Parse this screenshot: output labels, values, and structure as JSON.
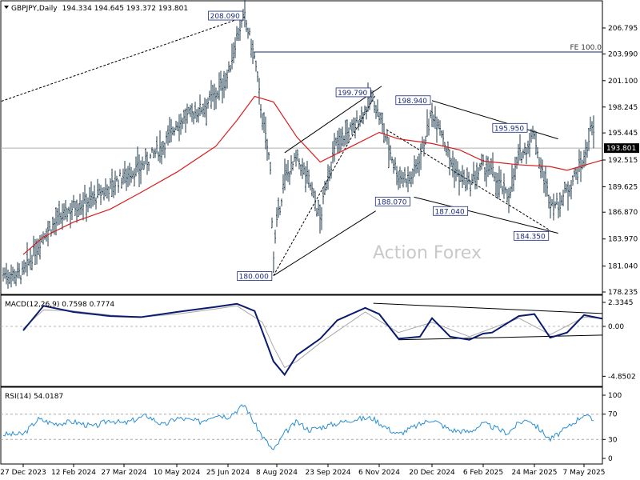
{
  "header": {
    "symbol": "GBPJPY",
    "timeframe": "Daily",
    "ohlc": "194.334 194.645 193.372 193.801"
  },
  "watermark": "Action Forex",
  "chart_data": [
    {
      "type": "line",
      "subtype": "ohlc-bars",
      "title": "GBPJPY,Daily",
      "y_axis_ticks": [
        "206.795",
        "203.990",
        "201.100",
        "198.245",
        "195.445",
        "192.515",
        "189.625",
        "186.870",
        "183.970",
        "181.040",
        "178.235"
      ],
      "ylim": [
        178.235,
        208.09
      ],
      "current_price": "193.801",
      "x_tick_labels": [
        "27 Dec 2023",
        "12 Feb 2024",
        "27 Mar 2024",
        "10 May 2024",
        "25 Jun 2024",
        "8 Aug 2024",
        "23 Sep 2024",
        "6 Nov 2024",
        "20 Dec 2024",
        "6 Feb 2025",
        "24 Mar 2025",
        "7 May 2025"
      ],
      "series": [
        {
          "name": "close",
          "x": [
            "2023-12-27",
            "2024-01-15",
            "2024-02-12",
            "2024-03-01",
            "2024-03-15",
            "2024-03-27",
            "2024-04-10",
            "2024-04-29",
            "2024-05-10",
            "2024-05-31",
            "2024-06-14",
            "2024-06-25",
            "2024-07-03",
            "2024-07-10",
            "2024-07-19",
            "2024-07-26",
            "2024-08-02",
            "2024-08-05",
            "2024-08-08",
            "2024-08-15",
            "2024-08-26",
            "2024-09-06",
            "2024-09-16",
            "2024-09-23",
            "2024-10-01",
            "2024-10-15",
            "2024-10-25",
            "2024-10-31",
            "2024-11-06",
            "2024-11-15",
            "2024-11-22",
            "2024-12-03",
            "2024-12-10",
            "2024-12-20",
            "2024-12-26",
            "2025-01-06",
            "2025-01-15",
            "2025-01-24",
            "2025-02-06",
            "2025-02-14",
            "2025-02-28",
            "2025-03-10",
            "2025-03-19",
            "2025-03-24",
            "2025-03-28",
            "2025-04-07",
            "2025-04-14",
            "2025-04-22",
            "2025-04-30",
            "2025-05-07",
            "2025-05-13",
            "2025-05-20",
            "2025-05-23"
          ],
          "values": [
            180.2,
            184.5,
            187.5,
            188.4,
            189.6,
            190.8,
            191.7,
            194.2,
            196.5,
            198.0,
            199.6,
            201.6,
            206.0,
            208.0,
            203.5,
            197.0,
            192.0,
            182.0,
            185.5,
            190.5,
            192.6,
            190.3,
            186.0,
            191.0,
            194.5,
            196.0,
            198.0,
            199.3,
            197.2,
            193.5,
            190.8,
            190.5,
            193.0,
            197.5,
            196.8,
            192.5,
            190.6,
            189.7,
            191.8,
            191.2,
            188.5,
            192.8,
            194.2,
            195.6,
            192.5,
            188.0,
            187.6,
            189.3,
            191.0,
            192.5,
            195.8,
            194.8,
            193.8
          ]
        },
        {
          "name": "moving-average",
          "x": [
            "2023-12-27",
            "2024-01-15",
            "2024-02-12",
            "2024-03-15",
            "2024-04-10",
            "2024-05-10",
            "2024-06-14",
            "2024-07-03",
            "2024-07-19",
            "2024-08-05",
            "2024-08-26",
            "2024-09-16",
            "2024-10-15",
            "2024-11-06",
            "2024-11-22",
            "2024-12-20",
            "2025-01-15",
            "2025-02-06",
            "2025-03-10",
            "2025-04-07",
            "2025-04-22",
            "2025-05-23"
          ],
          "values": [
            182.3,
            184.2,
            185.8,
            187.2,
            189.0,
            191.2,
            194.0,
            196.8,
            199.4,
            198.8,
            195.0,
            192.3,
            194.1,
            195.5,
            194.8,
            194.3,
            193.6,
            192.4,
            192.0,
            191.8,
            191.4,
            192.5
          ]
        }
      ],
      "level_labels": [
        {
          "date": "2024-07-10",
          "value": 208.09,
          "label": "208.090"
        },
        {
          "date": "2024-08-05",
          "value": 180.0,
          "label": "180.000"
        },
        {
          "date": "2024-10-31",
          "value": 199.79,
          "label": "199.790"
        },
        {
          "date": "2024-12-03",
          "value": 188.07,
          "label": "188.070"
        },
        {
          "date": "2024-12-20",
          "value": 198.94,
          "label": "198.940"
        },
        {
          "date": "2025-01-24",
          "value": 187.04,
          "label": "187.040"
        },
        {
          "date": "2025-03-19",
          "value": 195.95,
          "label": "195.950"
        },
        {
          "date": "2025-04-07",
          "value": 184.35,
          "label": "184.350"
        }
      ],
      "fe_label": "FE 100.0",
      "fe_level": 204.2
    },
    {
      "type": "line",
      "title": "MACD(12,26,9) 0.7598 0.7774",
      "y_axis_ticks": [
        "2.3345",
        "0.00",
        "-4.8502"
      ],
      "ylim": [
        -4.8502,
        2.3345
      ],
      "series": [
        {
          "name": "MACD",
          "x": [
            "2023-12-27",
            "2024-01-15",
            "2024-02-12",
            "2024-03-15",
            "2024-04-10",
            "2024-05-10",
            "2024-06-14",
            "2024-07-03",
            "2024-07-19",
            "2024-07-26",
            "2024-08-05",
            "2024-08-15",
            "2024-08-26",
            "2024-09-16",
            "2024-10-01",
            "2024-10-25",
            "2024-11-06",
            "2024-11-22",
            "2024-12-10",
            "2024-12-20",
            "2025-01-06",
            "2025-01-24",
            "2025-02-06",
            "2025-02-14",
            "2025-03-10",
            "2025-03-24",
            "2025-04-07",
            "2025-04-22",
            "2025-05-07",
            "2025-05-23"
          ],
          "values": [
            -0.4,
            2.0,
            1.4,
            1.0,
            0.9,
            1.4,
            1.9,
            2.2,
            1.5,
            -0.5,
            -3.4,
            -4.7,
            -2.8,
            -1.2,
            0.6,
            1.8,
            1.2,
            -1.2,
            -1.0,
            0.8,
            -1.0,
            -1.3,
            -0.7,
            -0.6,
            1.0,
            1.2,
            -1.1,
            -0.6,
            1.1,
            0.76
          ]
        },
        {
          "name": "Signal",
          "x": [
            "2023-12-27",
            "2024-01-15",
            "2024-02-12",
            "2024-03-15",
            "2024-04-10",
            "2024-05-10",
            "2024-06-14",
            "2024-07-03",
            "2024-07-26",
            "2024-08-05",
            "2024-08-15",
            "2024-08-26",
            "2024-09-16",
            "2024-10-25",
            "2024-11-22",
            "2024-12-20",
            "2025-01-24",
            "2025-03-10",
            "2025-04-07",
            "2025-05-07",
            "2025-05-23"
          ],
          "values": [
            -0.2,
            1.6,
            1.5,
            1.1,
            0.9,
            1.2,
            1.7,
            2.0,
            0.4,
            -2.0,
            -4.0,
            -3.4,
            -1.6,
            1.4,
            -0.6,
            0.4,
            -1.0,
            0.8,
            -0.8,
            0.9,
            0.78
          ]
        }
      ]
    },
    {
      "type": "line",
      "title": "RSI(14) 54.0187",
      "y_axis_ticks": [
        "100",
        "70",
        "30",
        "0"
      ],
      "ylim": [
        0,
        100
      ],
      "reference_levels": [
        70,
        30
      ],
      "series": [
        {
          "name": "RSI",
          "x": [
            "2023-12-27",
            "2024-01-10",
            "2024-01-25",
            "2024-02-12",
            "2024-03-01",
            "2024-03-15",
            "2024-03-27",
            "2024-04-15",
            "2024-04-29",
            "2024-05-10",
            "2024-05-31",
            "2024-06-14",
            "2024-06-25",
            "2024-07-10",
            "2024-07-19",
            "2024-07-26",
            "2024-08-05",
            "2024-08-15",
            "2024-08-26",
            "2024-09-06",
            "2024-09-23",
            "2024-10-15",
            "2024-10-31",
            "2024-11-15",
            "2024-11-22",
            "2024-12-03",
            "2024-12-20",
            "2025-01-06",
            "2025-01-24",
            "2025-02-06",
            "2025-02-14",
            "2025-02-28",
            "2025-03-10",
            "2025-03-19",
            "2025-04-07",
            "2025-04-22",
            "2025-05-07",
            "2025-05-13",
            "2025-05-23"
          ],
          "values": [
            38,
            62,
            55,
            58,
            50,
            61,
            55,
            68,
            52,
            64,
            58,
            70,
            66,
            85,
            55,
            35,
            12,
            40,
            58,
            45,
            52,
            62,
            64,
            45,
            38,
            48,
            62,
            45,
            42,
            55,
            50,
            40,
            56,
            62,
            30,
            48,
            70,
            62,
            54
          ]
        }
      ]
    }
  ]
}
